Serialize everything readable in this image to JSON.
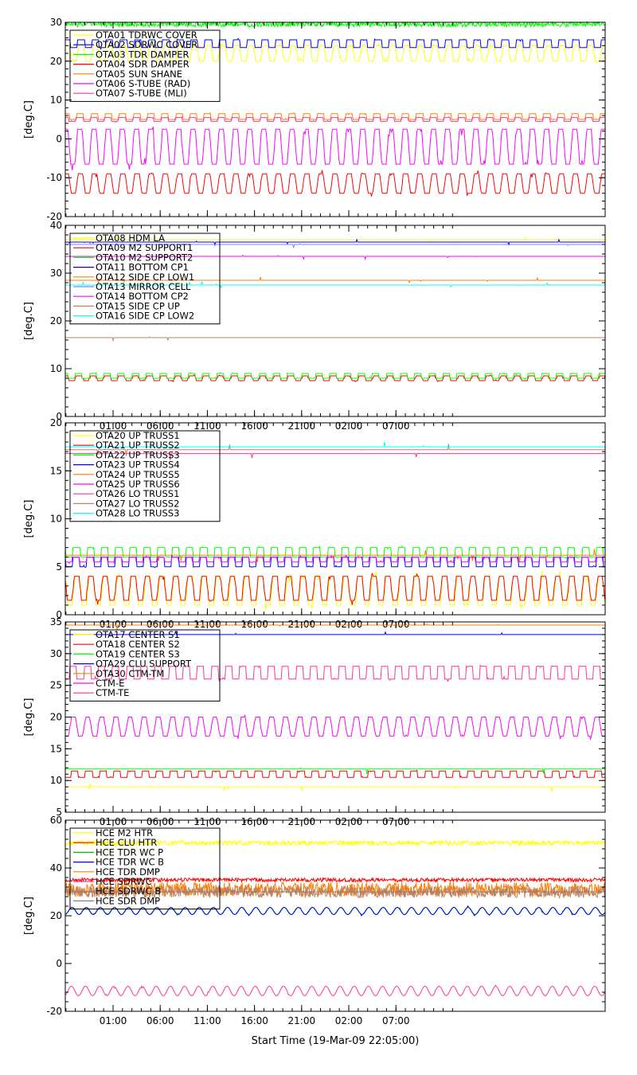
{
  "chart_data": [
    {
      "type": "line",
      "ylabel": "[deg.C]",
      "ylim": [
        -20,
        30
      ],
      "yticks": [
        -20,
        -10,
        0,
        10,
        20,
        30
      ],
      "xticks": [
        "01:00",
        "06:00",
        "11:00",
        "16:00",
        "21:00",
        "02:00",
        "07:00"
      ],
      "show_x_labels": false,
      "legend_position": "top-left",
      "series": [
        {
          "name": "OTA01 TDRWC COVER",
          "color": "#ffff00",
          "kind": "cycle",
          "base": 22,
          "amp": 2,
          "period": 1.5,
          "wave": "trap"
        },
        {
          "name": "OTA02 SDRWC COVER",
          "color": "#0000ff",
          "kind": "cycle",
          "base": 24.5,
          "amp": 1,
          "period": 1.5,
          "wave": "square"
        },
        {
          "name": "OTA03 TDR DAMPER",
          "color": "#00ff00",
          "kind": "noise",
          "base": 29.5,
          "amp": 0.7
        },
        {
          "name": "OTA04 SDR DAMPER",
          "color": "#ff0000",
          "kind": "cycle",
          "base": -11.5,
          "amp": 2.5,
          "period": 1.5,
          "wave": "trap"
        },
        {
          "name": "OTA05 SUN SHANE",
          "color": "#ff8000",
          "kind": "cycle",
          "base": 5.8,
          "amp": 0.8,
          "period": 1.5,
          "wave": "square"
        },
        {
          "name": "OTA06 S-TUBE (RAD)",
          "color": "#ff00ff",
          "kind": "cycle",
          "base": -2,
          "amp": 4.5,
          "period": 1.5,
          "wave": "trap"
        },
        {
          "name": "OTA07 S-TUBE (MLI)",
          "color": "#ff3399",
          "kind": "cycle",
          "base": 5.2,
          "amp": 0.5,
          "period": 1.5,
          "wave": "square"
        }
      ]
    },
    {
      "type": "line",
      "ylabel": "[deg.C]",
      "ylim": [
        0,
        40
      ],
      "yticks": [
        0,
        10,
        20,
        30,
        40
      ],
      "xticks": [
        "01:00",
        "06:00",
        "11:00",
        "16:00",
        "21:00",
        "02:00",
        "07:00"
      ],
      "show_x_labels": true,
      "legend_position": "top-left",
      "series": [
        {
          "name": "OTA08 HDM LA",
          "color": "#ffff00",
          "kind": "flat",
          "base": 37
        },
        {
          "name": "OTA09 M2 SUPPORT1",
          "color": "#ff0000",
          "kind": "cycle",
          "base": 8,
          "amp": 0.5,
          "period": 1.5,
          "wave": "trap"
        },
        {
          "name": "OTA10 M2 SUPPORT2",
          "color": "#00ff00",
          "kind": "cycle",
          "base": 8.5,
          "amp": 0.6,
          "period": 1.5,
          "wave": "square"
        },
        {
          "name": "OTA11 BOTTOM CP1",
          "color": "#0000ff",
          "kind": "flat",
          "base": 36.5
        },
        {
          "name": "OTA12 SIDE CP LOW1",
          "color": "#ff8000",
          "kind": "flat",
          "base": 28.5
        },
        {
          "name": "OTA13 MIRROR CELL",
          "color": "#8080ff",
          "kind": "flat",
          "base": 36
        },
        {
          "name": "OTA14 BOTTOM CP2",
          "color": "#ff00ff",
          "kind": "flat",
          "base": 33.5
        },
        {
          "name": "OTA15 SIDE CP UP",
          "color": "#c08060",
          "kind": "flat",
          "base": 16.5
        },
        {
          "name": "OTA16 SIDE CP LOW2",
          "color": "#00ffff",
          "kind": "flat",
          "base": 27.5
        }
      ]
    },
    {
      "type": "line",
      "ylabel": "[deg.C]",
      "ylim": [
        0,
        20
      ],
      "yticks": [
        0,
        5,
        10,
        15,
        20
      ],
      "xticks": [
        "01:00",
        "06:00",
        "11:00",
        "16:00",
        "21:00",
        "02:00",
        "07:00"
      ],
      "show_x_labels": true,
      "legend_position": "top-left",
      "series": [
        {
          "name": "OTA20 UP TRUSS1",
          "color": "#ffff00",
          "kind": "cycle",
          "base": 2.5,
          "amp": 1.5,
          "period": 1.5,
          "wave": "trap"
        },
        {
          "name": "OTA21 UP TRUSS2",
          "color": "#ff0000",
          "kind": "cycle",
          "base": 2.8,
          "amp": 1.3,
          "period": 1.5,
          "wave": "trap"
        },
        {
          "name": "OTA22 UP TRUSS3",
          "color": "#00ff00",
          "kind": "cycle",
          "base": 6.5,
          "amp": 0.3,
          "period": 1.5,
          "wave": "square"
        },
        {
          "name": "OTA23 UP TRUSS4",
          "color": "#0000ff",
          "kind": "cycle",
          "base": 5.6,
          "amp": 0.4,
          "period": 1.5,
          "wave": "square"
        },
        {
          "name": "OTA24 UP TRUSS5",
          "color": "#ff8000",
          "kind": "flat",
          "base": 6.2
        },
        {
          "name": "OTA25 UP TRUSS6",
          "color": "#ff00ff",
          "kind": "cycle",
          "base": 5.8,
          "amp": 0.4,
          "period": 1.5,
          "wave": "square"
        },
        {
          "name": "OTA26 LO TRUSS1",
          "color": "#ff3399",
          "kind": "flat",
          "base": 16.8
        },
        {
          "name": "OTA27 LO TRUSS2",
          "color": "#c08060",
          "kind": "flat",
          "base": 17.2
        },
        {
          "name": "OTA28 LO TRUSS3",
          "color": "#00ffff",
          "kind": "flat",
          "base": 17.5
        }
      ]
    },
    {
      "type": "line",
      "ylabel": "[deg.C]",
      "ylim": [
        5,
        35
      ],
      "yticks": [
        5,
        10,
        15,
        20,
        25,
        30,
        35
      ],
      "xticks": [
        "01:00",
        "06:00",
        "11:00",
        "16:00",
        "21:00",
        "02:00",
        "07:00"
      ],
      "show_x_labels": true,
      "legend_position": "top-left",
      "series": [
        {
          "name": "OTA17 CENTER S1",
          "color": "#ffff00",
          "kind": "flat",
          "base": 9
        },
        {
          "name": "OTA18 CENTER S2",
          "color": "#ff0000",
          "kind": "cycle",
          "base": 11,
          "amp": 0.5,
          "period": 1.5,
          "wave": "square"
        },
        {
          "name": "OTA19 CENTER S3",
          "color": "#00ff00",
          "kind": "flat",
          "base": 11.8
        },
        {
          "name": "OTA29 CLU SUPPORT",
          "color": "#0000ff",
          "kind": "flat",
          "base": 33
        },
        {
          "name": "OTA30 CTM-TM",
          "color": "#ff8000",
          "kind": "flat",
          "base": 34.5
        },
        {
          "name": "CTM-E",
          "color": "#ff00ff",
          "kind": "cycle",
          "base": 18.5,
          "amp": 1.3,
          "period": 1.5,
          "wave": "trap"
        },
        {
          "name": "CTM-TE",
          "color": "#ff3399",
          "kind": "cycle",
          "base": 27,
          "amp": 1,
          "period": 1.5,
          "wave": "square"
        }
      ]
    },
    {
      "type": "line",
      "ylabel": "[deg.C]",
      "xlabel": "Start Time (19-Mar-09 22:05:00)",
      "ylim": [
        -20,
        60
      ],
      "yticks": [
        -20,
        0,
        20,
        40,
        60
      ],
      "xticks": [
        "01:00",
        "06:00",
        "11:00",
        "16:00",
        "21:00",
        "02:00",
        "07:00"
      ],
      "show_x_labels": true,
      "legend_position": "top-left",
      "series": [
        {
          "name": "HCE M2 HTR",
          "color": "#ffff00",
          "kind": "noise",
          "base": 50.5,
          "amp": 1
        },
        {
          "name": "HCE CLU HTR",
          "color": "#ff0000",
          "kind": "noise",
          "base": 35,
          "amp": 0.8
        },
        {
          "name": "HCE TDR WC P",
          "color": "#00c000",
          "kind": "cycle",
          "base": 22,
          "amp": 1.5,
          "period": 1.5,
          "wave": "sine"
        },
        {
          "name": "HCE TDR WC B",
          "color": "#0000ff",
          "kind": "cycle",
          "base": 22,
          "amp": 1.5,
          "period": 1.5,
          "wave": "sine"
        },
        {
          "name": "HCE TDR DMP",
          "color": "#ff8000",
          "kind": "noise",
          "base": 31,
          "amp": 3
        },
        {
          "name": "HCE SDRWC",
          "color": "#ff3399",
          "kind": "cycle",
          "base": -11.5,
          "amp": 2,
          "period": 1.5,
          "wave": "sine"
        },
        {
          "name": "HCE SDRWC B",
          "color": "#c08060",
          "kind": "noise",
          "base": 30,
          "amp": 2.5
        },
        {
          "name": "HCE SDR DMP",
          "color": "#808080",
          "kind": "flat",
          "base": 30
        }
      ]
    }
  ]
}
